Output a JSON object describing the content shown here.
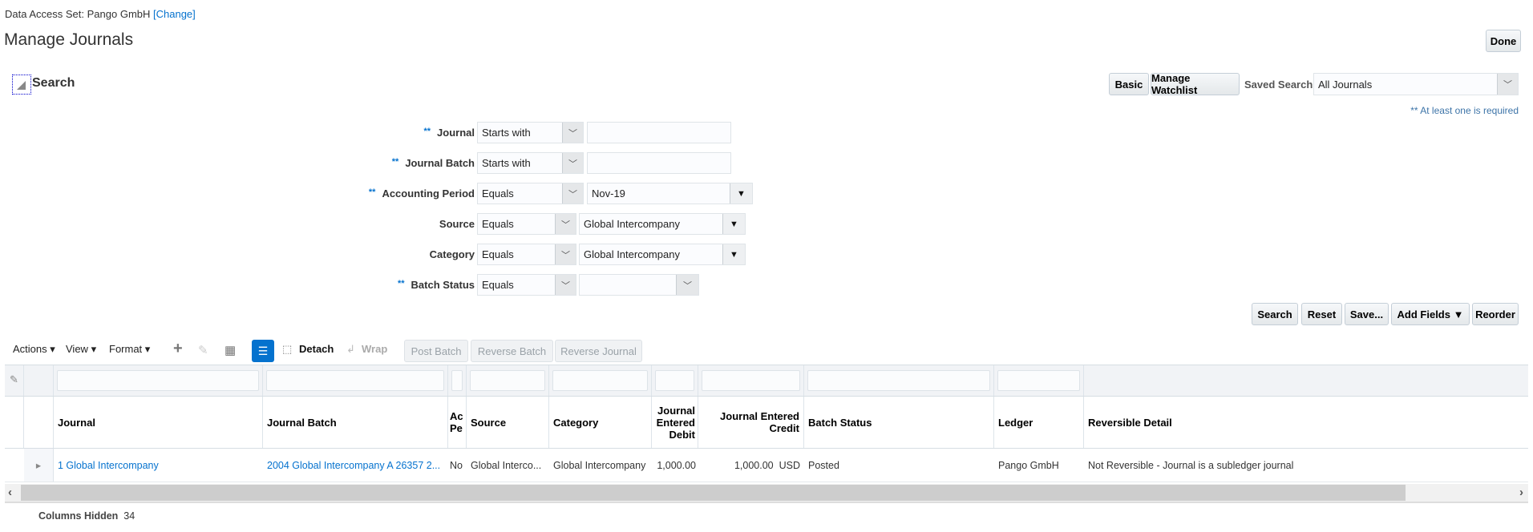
{
  "header": {
    "data_access_label": "Data Access Set:",
    "data_access_value": "Pango GmbH",
    "change_link": "[Change]",
    "title": "Manage Journals",
    "done": "Done"
  },
  "search": {
    "title": "Search",
    "basic": "Basic",
    "manage_watchlist": "Manage Watchlist",
    "saved_search_label": "Saved Search",
    "saved_search_value": "All Journals",
    "required_note": "** At least one is required",
    "fields": [
      {
        "label": "Journal",
        "required": "**",
        "operator": "Starts with",
        "value": ""
      },
      {
        "label": "Journal Batch",
        "required": "**",
        "operator": "Starts with",
        "value": ""
      },
      {
        "label": "Accounting Period",
        "required": "**",
        "operator": "Equals",
        "value": "Nov-19"
      },
      {
        "label": "Source",
        "required": "",
        "operator": "Equals",
        "value": "Global Intercompany"
      },
      {
        "label": "Category",
        "required": "",
        "operator": "Equals",
        "value": "Global Intercompany"
      },
      {
        "label": "Batch Status",
        "required": "**",
        "operator": "Equals",
        "value": ""
      }
    ],
    "buttons": {
      "search": "Search",
      "reset": "Reset",
      "save": "Save...",
      "add_fields": "Add Fields",
      "reorder": "Reorder"
    }
  },
  "toolbar": {
    "actions": "Actions",
    "view": "View",
    "format": "Format",
    "detach": "Detach",
    "wrap": "Wrap",
    "post_batch": "Post Batch",
    "reverse_batch": "Reverse Batch",
    "reverse_journal": "Reverse Journal"
  },
  "table": {
    "columns": [
      "Journal",
      "Journal Batch",
      "Ac Pe",
      "Source",
      "Category",
      "Journal Entered Debit",
      "Journal Entered Credit",
      "Batch Status",
      "Ledger",
      "Reversible Detail"
    ],
    "rows": [
      {
        "journal": "1 Global Intercompany",
        "batch": "2004 Global Intercompany A 26357 2...",
        "period": "No",
        "source": "Global Interco...",
        "category": "Global Intercompany",
        "debit": "1,000.00",
        "credit": "1,000.00",
        "currency": "USD",
        "status": "Posted",
        "ledger": "Pango GmbH",
        "reversible": "Not Reversible - Journal is a subledger journal"
      }
    ],
    "columns_hidden_label": "Columns Hidden",
    "columns_hidden_count": "34"
  },
  "colors": {
    "link": "#0572ce",
    "accent": "#0572ce"
  }
}
